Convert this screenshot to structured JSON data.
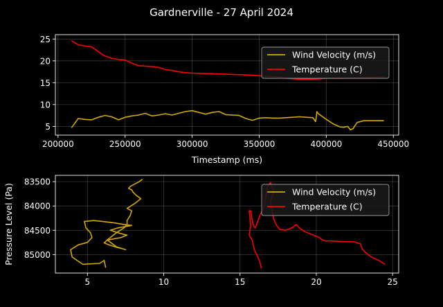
{
  "figure": {
    "title": "Gardnerville - 27 April 2024"
  },
  "chart_data": [
    {
      "type": "line",
      "xlabel": "Timestamp (ms)",
      "ylabel": "",
      "xlim": [
        198000,
        454000
      ],
      "ylim": [
        3,
        26
      ],
      "xticks": [
        200000,
        250000,
        300000,
        350000,
        400000,
        450000
      ],
      "xticklabels": [
        "200000",
        "250000",
        "300000",
        "350000",
        "400000",
        "450000"
      ],
      "yticks": [
        5,
        10,
        15,
        20,
        25
      ],
      "yticklabels": [
        "5",
        "10",
        "15",
        "20",
        "25"
      ],
      "grid": true,
      "legend": "upper-right",
      "series": [
        {
          "name": "Wind Velocity (m/s)",
          "color": "#d4aa00",
          "x": [
            210000,
            212000,
            215000,
            220000,
            225000,
            230000,
            235000,
            240000,
            245000,
            250000,
            255000,
            260000,
            265000,
            270000,
            275000,
            280000,
            285000,
            290000,
            295000,
            300000,
            305000,
            310000,
            315000,
            320000,
            325000,
            330000,
            335000,
            340000,
            345000,
            350000,
            355000,
            360000,
            365000,
            370000,
            375000,
            380000,
            385000,
            390000,
            392000,
            392500,
            393000,
            394000,
            396000,
            400000,
            405000,
            410000,
            413000,
            416000,
            418000,
            420000,
            423000,
            428000,
            435000,
            443000
          ],
          "y": [
            4.7,
            5.5,
            6.8,
            6.6,
            6.5,
            7.1,
            7.5,
            7.2,
            6.5,
            7.1,
            7.4,
            7.6,
            8.0,
            7.4,
            7.6,
            7.9,
            7.6,
            8.0,
            8.4,
            8.6,
            8.2,
            7.8,
            8.2,
            8.4,
            7.7,
            7.6,
            7.5,
            6.8,
            6.4,
            6.9,
            7.0,
            6.9,
            6.9,
            7.0,
            7.1,
            7.2,
            7.1,
            7.0,
            6.1,
            7.0,
            8.4,
            7.9,
            7.5,
            6.6,
            5.6,
            4.9,
            4.8,
            5.0,
            4.2,
            4.5,
            5.9,
            6.3,
            6.3,
            6.3
          ]
        },
        {
          "name": "Temperature (C)",
          "color": "#ff0000",
          "x": [
            210000,
            215000,
            220000,
            225000,
            228000,
            230000,
            233000,
            235000,
            240000,
            245000,
            250000,
            255000,
            260000,
            265000,
            270000,
            275000,
            280000,
            285000,
            290000,
            295000,
            300000,
            310000,
            320000,
            330000,
            340000,
            345000,
            350000,
            355000,
            360000,
            365000,
            370000,
            375000,
            380000,
            385000,
            390000,
            395000,
            400000,
            410000,
            420000,
            430000,
            443000
          ],
          "y": [
            24.6,
            23.7,
            23.4,
            23.2,
            22.6,
            22.1,
            21.5,
            21.1,
            20.6,
            20.3,
            20.2,
            19.5,
            18.9,
            18.8,
            18.7,
            18.5,
            18.0,
            17.8,
            17.5,
            17.3,
            17.2,
            17.1,
            17.0,
            16.9,
            16.8,
            16.7,
            16.6,
            16.5,
            16.4,
            16.3,
            16.0,
            15.9,
            15.8,
            15.8,
            15.8,
            15.9,
            16.0,
            16.0,
            16.1,
            16.2,
            16.3
          ]
        }
      ]
    },
    {
      "type": "line",
      "xlabel": "",
      "ylabel": "Pressure Level (Pa)",
      "xlim": [
        2.9,
        25.4
      ],
      "ylim": [
        85380,
        83370
      ],
      "xticks": [
        5,
        10,
        15,
        20,
        25
      ],
      "xticklabels": [
        "5",
        "10",
        "15",
        "20",
        "25"
      ],
      "yticks": [
        83500,
        84000,
        84500,
        85000
      ],
      "yticklabels": [
        "83500",
        "84000",
        "84500",
        "85000"
      ],
      "grid": true,
      "legend": "upper-right",
      "series": [
        {
          "name": "Wind Velocity (m/s)",
          "color": "#d4aa00",
          "x": [
            6.2,
            6.1,
            5.8,
            4.7,
            4.0,
            3.9,
            4.4,
            5.0,
            5.3,
            5.2,
            4.9,
            4.8,
            5.4,
            6.0,
            6.8,
            7.4,
            7.9,
            7.0,
            6.5,
            7.1,
            7.6,
            7.2,
            6.3,
            6.1,
            6.4,
            6.9,
            7.3,
            7.5,
            6.9,
            6.3,
            6.9,
            7.4,
            7.6,
            7.6,
            7.8,
            7.9,
            7.6,
            8.1,
            8.5,
            8.2,
            8.0,
            7.9,
            7.7,
            7.8,
            8.1,
            8.4,
            8.6
          ],
          "y": [
            85270,
            85120,
            85180,
            85200,
            85050,
            84900,
            84800,
            84750,
            84650,
            84550,
            84450,
            84320,
            84300,
            84320,
            84350,
            84380,
            84400,
            84450,
            84500,
            84560,
            84600,
            84650,
            84700,
            84760,
            84800,
            84850,
            84880,
            84900,
            84840,
            84700,
            84550,
            84450,
            84380,
            84300,
            84200,
            84100,
            84050,
            83950,
            83850,
            83780,
            83720,
            83670,
            83640,
            83600,
            83550,
            83500,
            83450
          ]
        },
        {
          "name": "Temperature (C)",
          "color": "#ff0000",
          "x": [
            24.5,
            24.1,
            23.6,
            23.2,
            23.0,
            22.9,
            22.5,
            21.6,
            21.0,
            20.6,
            20.4,
            20.2,
            19.8,
            19.2,
            19.0,
            18.8,
            18.7,
            18.6,
            18.4,
            18.0,
            17.6,
            17.4,
            17.2,
            17.1,
            17.0,
            17.2,
            17.0,
            16.8,
            16.6,
            16.3,
            16.0,
            15.9,
            15.8,
            15.7,
            15.6,
            15.7,
            15.6,
            15.8,
            15.9,
            16.0,
            16.1,
            16.3,
            16.4
          ],
          "y": [
            85200,
            85120,
            85050,
            84950,
            84880,
            84780,
            84740,
            84730,
            84720,
            84720,
            84700,
            84650,
            84600,
            84520,
            84480,
            84420,
            84380,
            84400,
            84450,
            84500,
            84480,
            84400,
            84260,
            84060,
            83900,
            83720,
            83520,
            83600,
            84000,
            84200,
            84450,
            84420,
            84300,
            84100,
            84100,
            84400,
            84600,
            84700,
            84850,
            84950,
            85000,
            85150,
            85280
          ]
        }
      ]
    }
  ]
}
